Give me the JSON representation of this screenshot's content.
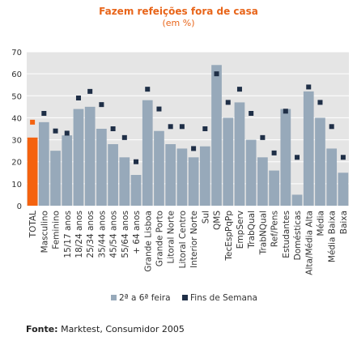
{
  "chart_data": {
    "type": "bar",
    "title": "Fazem refeições fora de casa",
    "subtitle": "(em %)",
    "ylim": [
      0,
      70
    ],
    "yticks": [
      0,
      10,
      20,
      30,
      40,
      50,
      60,
      70
    ],
    "grid": true,
    "legend_position": "bottom",
    "categories": [
      "TOTAL",
      "Masculino",
      "Feminino",
      "15/17 anos",
      "18/24 anos",
      "25/34 anos",
      "35/44 anos",
      "45/54 anos",
      "55/64 anos",
      "+ 64 anos",
      "Grande Lisboa",
      "Grande Porto",
      "Litoral Norte",
      "Litoral Centro",
      "Interior Norte",
      "Sul",
      "QMS",
      "TecEspPqPp",
      "EmpServ",
      "TrabQual",
      "TrabNQual",
      "Ref/Pens",
      "Estudantes",
      "Domésticas",
      "Alta/Média Alta",
      "Média",
      "Média Baixa",
      "Baixa"
    ],
    "series": [
      {
        "name": "2ª a 6ª feira",
        "type": "bar",
        "values": [
          31,
          38,
          25,
          32,
          44,
          45,
          35,
          28,
          22,
          14,
          48,
          34,
          28,
          26,
          22,
          27,
          64,
          40,
          47,
          30,
          22,
          16,
          44,
          5,
          52,
          40,
          26,
          15
        ]
      },
      {
        "name": "Fins de Semana",
        "type": "marker",
        "values": [
          38,
          42,
          34,
          33,
          49,
          52,
          46,
          35,
          31,
          20,
          53,
          44,
          36,
          36,
          26,
          35,
          60,
          47,
          53,
          42,
          31,
          24,
          43,
          22,
          54,
          47,
          36,
          22
        ]
      }
    ],
    "highlight_category": "TOTAL",
    "colors": {
      "bar": "#97a9ba",
      "bar_highlight": "#f4620f",
      "marker": "#1f2f47",
      "marker_highlight": "#f4620f",
      "plot_bg": "#e5e5e5",
      "grid": "#ffffff",
      "title": "#e8651a"
    }
  },
  "source": {
    "label": "Fonte:",
    "text": " Marktest, Consumidor 2005"
  }
}
